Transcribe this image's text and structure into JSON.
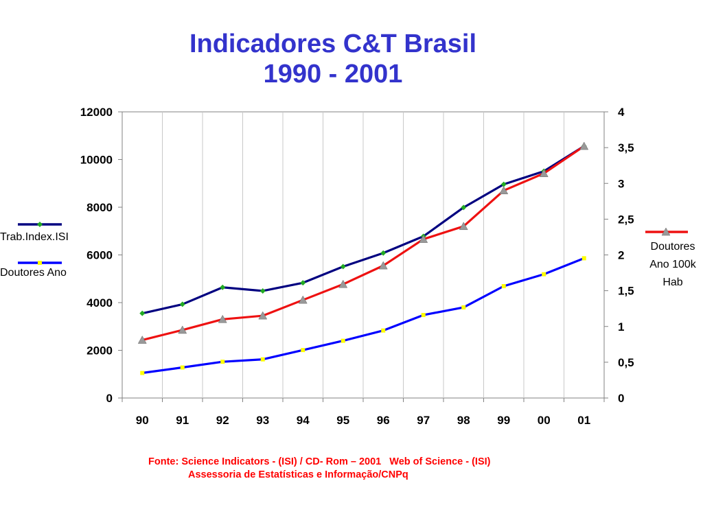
{
  "title": {
    "line1": "Indicadores C&T Brasil",
    "line2": "1990 - 2001"
  },
  "chart_data": {
    "type": "line",
    "categories": [
      "90",
      "91",
      "92",
      "93",
      "94",
      "95",
      "96",
      "97",
      "98",
      "99",
      "00",
      "01"
    ],
    "left_axis": {
      "ylim": [
        0,
        12000
      ],
      "ticks": [
        "0",
        "2000",
        "4000",
        "6000",
        "8000",
        "10000",
        "12000"
      ]
    },
    "right_axis": {
      "ylim": [
        0,
        4
      ],
      "ticks": [
        "0",
        "0,5",
        "1",
        "1,5",
        "2",
        "2,5",
        "3",
        "3,5",
        "4"
      ]
    },
    "grid": "vertical",
    "series": [
      {
        "name": "Trab.Index.ISI",
        "axis": "left",
        "color": "#000080",
        "marker_color": "#22aa22",
        "marker": "diamond",
        "values": [
          3550,
          3930,
          4640,
          4490,
          4830,
          5510,
          6080,
          6780,
          7990,
          8960,
          9510,
          10560
        ]
      },
      {
        "name": "Doutores Ano",
        "axis": "left",
        "color": "#0000ff",
        "marker_color": "#ffff00",
        "marker": "square",
        "values": [
          1050,
          1280,
          1520,
          1620,
          2010,
          2400,
          2830,
          3480,
          3800,
          4690,
          5190,
          5860
        ]
      },
      {
        "name": "Doutores Ano 100k Hab",
        "axis": "right",
        "color": "#ee1111",
        "marker_color": "#999999",
        "marker": "triangle",
        "values": [
          0.81,
          0.95,
          1.1,
          1.15,
          1.37,
          1.59,
          1.85,
          2.22,
          2.4,
          2.9,
          3.14,
          3.52
        ]
      }
    ],
    "legend_left": [
      {
        "label": "Trab.Index.ISI"
      },
      {
        "label": "Doutores Ano"
      }
    ],
    "legend_right": {
      "lines": [
        "Doutores",
        "Ano 100k",
        "Hab"
      ]
    }
  },
  "source": {
    "line1": "Fonte: Science Indicators - (ISI) / CD- Rom – 2001   Web of Science - (ISI)",
    "line2": "Assessoria de Estatísticas e Informação/CNPq"
  }
}
